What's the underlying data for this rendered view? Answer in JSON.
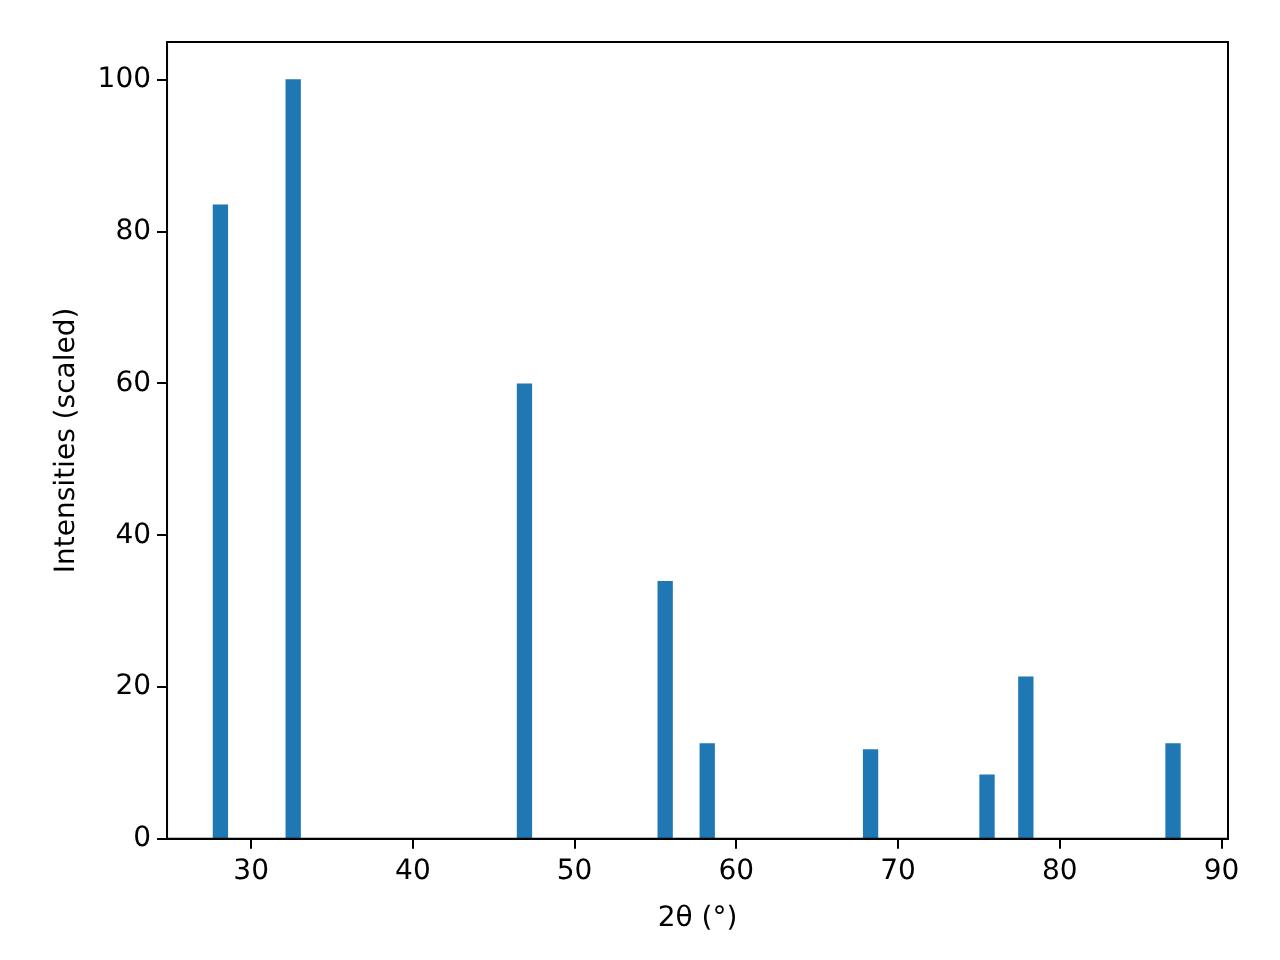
{
  "chart_data": {
    "type": "bar",
    "xlabel": "2θ (°)",
    "ylabel": "Intensities (scaled)",
    "x": [
      28.1,
      32.6,
      46.9,
      55.6,
      58.2,
      68.3,
      75.5,
      77.9,
      87.0
    ],
    "values": [
      83.5,
      100,
      59.9,
      33.9,
      12.5,
      11.7,
      8.4,
      21.3,
      12.5
    ],
    "color": "#1f77b4",
    "xlim": [
      24.8,
      90.4
    ],
    "xticks": [
      30,
      40,
      50,
      60,
      70,
      80,
      90
    ],
    "ylim": [
      0,
      105
    ],
    "yticks": [
      0,
      20,
      40,
      60,
      80,
      100
    ],
    "grid": false,
    "legend": false
  }
}
